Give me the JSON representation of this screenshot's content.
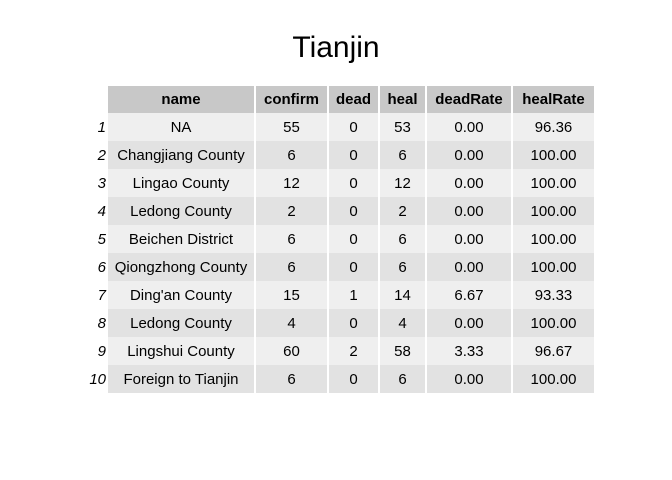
{
  "chart_data": {
    "type": "table",
    "title": "Tianjin",
    "columns": [
      "name",
      "confirm",
      "dead",
      "heal",
      "deadRate",
      "healRate"
    ],
    "rows": [
      {
        "id": "1",
        "name": "NA",
        "confirm": "55",
        "dead": "0",
        "heal": "53",
        "deadRate": "0.00",
        "healRate": "96.36"
      },
      {
        "id": "2",
        "name": "Changjiang County",
        "confirm": "6",
        "dead": "0",
        "heal": "6",
        "deadRate": "0.00",
        "healRate": "100.00"
      },
      {
        "id": "3",
        "name": "Lingao County",
        "confirm": "12",
        "dead": "0",
        "heal": "12",
        "deadRate": "0.00",
        "healRate": "100.00"
      },
      {
        "id": "4",
        "name": "Ledong County",
        "confirm": "2",
        "dead": "0",
        "heal": "2",
        "deadRate": "0.00",
        "healRate": "100.00"
      },
      {
        "id": "5",
        "name": "Beichen District",
        "confirm": "6",
        "dead": "0",
        "heal": "6",
        "deadRate": "0.00",
        "healRate": "100.00"
      },
      {
        "id": "6",
        "name": "Qiongzhong County",
        "confirm": "6",
        "dead": "0",
        "heal": "6",
        "deadRate": "0.00",
        "healRate": "100.00"
      },
      {
        "id": "7",
        "name": "Ding'an County",
        "confirm": "15",
        "dead": "1",
        "heal": "14",
        "deadRate": "6.67",
        "healRate": "93.33"
      },
      {
        "id": "8",
        "name": "Ledong County",
        "confirm": "4",
        "dead": "0",
        "heal": "4",
        "deadRate": "0.00",
        "healRate": "100.00"
      },
      {
        "id": "9",
        "name": "Lingshui County",
        "confirm": "60",
        "dead": "2",
        "heal": "58",
        "deadRate": "3.33",
        "healRate": "96.67"
      },
      {
        "id": "10",
        "name": "Foreign to Tianjin",
        "confirm": "6",
        "dead": "0",
        "heal": "6",
        "deadRate": "0.00",
        "healRate": "100.00"
      }
    ]
  }
}
